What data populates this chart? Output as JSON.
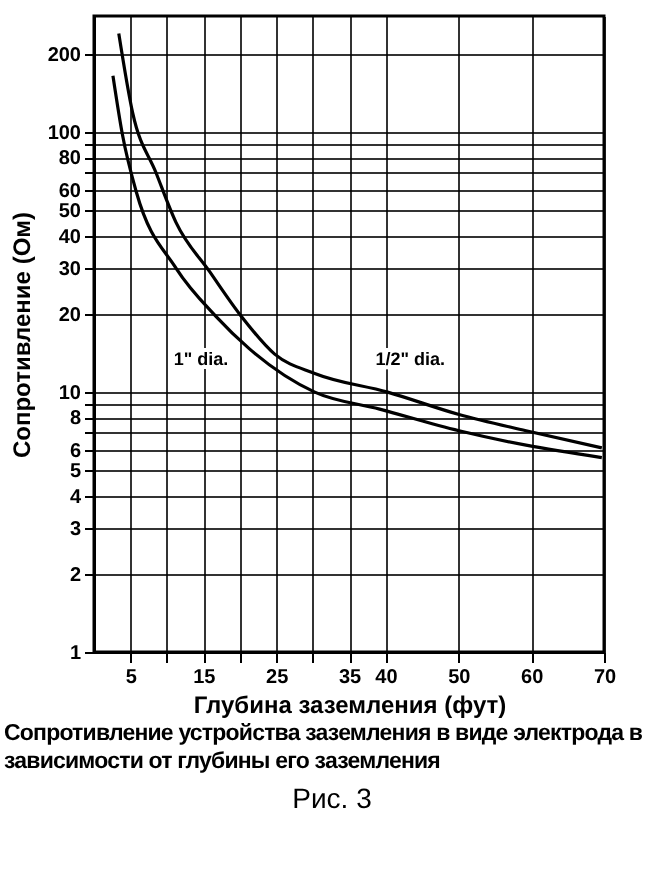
{
  "chart_data": {
    "type": "line",
    "xlabel": "Глубина заземления (фут)",
    "ylabel": "Сопротивление (Ом)",
    "series": [
      {
        "color": "#000000",
        "x": [
          2.6,
          3.9,
          5.8,
          11.25,
          16.7,
          21.3,
          30.3,
          39.2,
          50.1,
          59.3,
          69.7
        ],
        "values": [
          165,
          98,
          59,
          30,
          19.6,
          14.7,
          10,
          8.6,
          7.1,
          6.25,
          5.6
        ]
      },
      {
        "color": "#000000",
        "x": [
          3.4,
          5.3,
          8.5,
          11.25,
          15.9,
          20.2,
          24.8,
          30.3,
          40.3,
          50.1,
          59.3,
          69.7
        ],
        "values": [
          240,
          119,
          70,
          45,
          29,
          19.6,
          14,
          11.8,
          10,
          8.2,
          7.1,
          6.1
        ]
      }
    ],
    "annotations": [
      "1\" dia.",
      "1/2\" dia.",
      "Сопротивление устройства заземления в виде электрода в зависимости от глубины его заземления",
      "Рис. 3"
    ],
    "xlim": [
      0,
      70
    ],
    "ylim": [
      1,
      280
    ],
    "log": "y",
    "xticks": [
      5,
      {
        "value": 10,
        "label": null
      },
      15,
      {
        "value": 20,
        "label": null
      },
      25,
      {
        "value": 30,
        "label": null
      },
      35,
      40,
      50,
      60,
      70
    ],
    "yticks": [
      1,
      2,
      3,
      4,
      5,
      6,
      {
        "value": 7,
        "label": null
      },
      8,
      {
        "value": 9,
        "label": null
      },
      10,
      20,
      30,
      40,
      50,
      60,
      {
        "value": 70,
        "label": null
      },
      80,
      {
        "value": 90,
        "label": null
      },
      100,
      200
    ],
    "grid": true,
    "marker": "none",
    "line_style": "solid",
    "legend": false
  }
}
